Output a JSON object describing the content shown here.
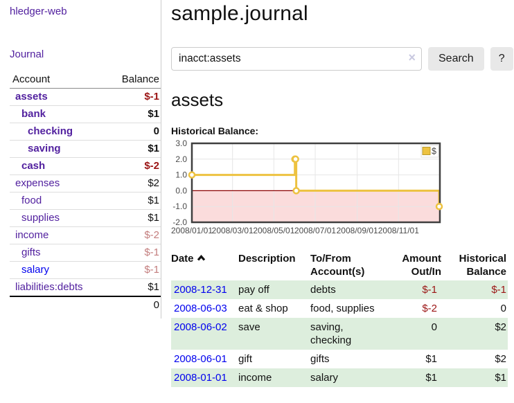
{
  "sidebar": {
    "app_title": "hledger-web",
    "journal_link": "Journal",
    "accounts": {
      "account_header": "Account",
      "balance_header": "Balance",
      "rows": [
        {
          "name": "assets",
          "balance": "$-1",
          "indent": 0,
          "bold": true,
          "balance_class": "neg-strong"
        },
        {
          "name": "bank",
          "balance": "$1",
          "indent": 1,
          "bold": true,
          "balance_class": ""
        },
        {
          "name": "checking",
          "balance": "0",
          "indent": 2,
          "bold": true,
          "balance_class": ""
        },
        {
          "name": "saving",
          "balance": "$1",
          "indent": 2,
          "bold": true,
          "balance_class": ""
        },
        {
          "name": "cash",
          "balance": "$-2",
          "indent": 1,
          "bold": true,
          "balance_class": "neg-strong"
        },
        {
          "name": "expenses",
          "balance": "$2",
          "indent": 0,
          "bold": false,
          "balance_class": ""
        },
        {
          "name": "food",
          "balance": "$1",
          "indent": 1,
          "bold": false,
          "balance_class": ""
        },
        {
          "name": "supplies",
          "balance": "$1",
          "indent": 1,
          "bold": false,
          "balance_class": ""
        },
        {
          "name": "income",
          "balance": "$-2",
          "indent": 0,
          "bold": false,
          "balance_class": "neg-light"
        },
        {
          "name": "gifts",
          "balance": "$-1",
          "indent": 1,
          "bold": false,
          "balance_class": "neg-light"
        },
        {
          "name": "salary",
          "balance": "$-1",
          "indent": 1,
          "bold": false,
          "balance_class": "neg-light",
          "link_color": "blue"
        },
        {
          "name": "liabilities:debts",
          "balance": "$1",
          "indent": 0,
          "bold": false,
          "balance_class": ""
        }
      ],
      "total": "0"
    }
  },
  "main": {
    "title": "sample.journal",
    "search": {
      "value": "inacct:assets",
      "clear_icon": "×",
      "button_label": "Search",
      "help_label": "?"
    },
    "account_heading": "assets",
    "chart_label": "Historical Balance:"
  },
  "chart_data": {
    "type": "line",
    "title": "Historical Balance",
    "step": true,
    "xlim": [
      "2008-01-01",
      "2009-01-01"
    ],
    "ylim": [
      -2,
      3
    ],
    "yticks": [
      {
        "label": "3.0",
        "value": 3
      },
      {
        "label": "2.0",
        "value": 2
      },
      {
        "label": "1.0",
        "value": 1
      },
      {
        "label": "0.0",
        "value": 0
      },
      {
        "label": "-1.0",
        "value": -1
      },
      {
        "label": "-2.0",
        "value": -2
      }
    ],
    "xticks": [
      {
        "label": "2008/01/01",
        "date": "2008-01-01"
      },
      {
        "label": "2008/03/01",
        "date": "2008-03-01"
      },
      {
        "label": "2008/05/01",
        "date": "2008-05-01"
      },
      {
        "label": "2008/07/01",
        "date": "2008-07-01"
      },
      {
        "label": "2008/09/01",
        "date": "2008-09-01"
      },
      {
        "label": "2008/11/01",
        "date": "2008-11-01"
      }
    ],
    "series": [
      {
        "name": "$",
        "color": "#edc240",
        "points": [
          [
            "2008-01-01",
            1
          ],
          [
            "2008-06-01",
            2
          ],
          [
            "2008-06-02",
            2
          ],
          [
            "2008-06-03",
            0
          ],
          [
            "2008-12-31",
            -1
          ]
        ]
      }
    ],
    "legend_position": "top-right",
    "negative_region_color": "#fbdcdc",
    "zero_line_color": "#8b0000",
    "grid_color": "#e6e6e6",
    "border_color": "#3f3f3f"
  },
  "register": {
    "headers": [
      "Date",
      "Description",
      "To/From Account(s)",
      "Amount Out/In",
      "Historical Balance"
    ],
    "sort": {
      "column": "Date",
      "direction": "ascending"
    },
    "rows": [
      {
        "date": "2008-12-31",
        "description": "pay off",
        "accounts": "debts",
        "amount": "$-1",
        "balance": "$-1"
      },
      {
        "date": "2008-06-03",
        "description": "eat & shop",
        "accounts": "food, supplies",
        "amount": "$-2",
        "balance": "0"
      },
      {
        "date": "2008-06-02",
        "description": "save",
        "accounts": "saving, checking",
        "amount": "0",
        "balance": "$2"
      },
      {
        "date": "2008-06-01",
        "description": "gift",
        "accounts": "gifts",
        "amount": "$1",
        "balance": "$2"
      },
      {
        "date": "2008-01-01",
        "description": "income",
        "accounts": "salary",
        "amount": "$1",
        "balance": "$1"
      }
    ]
  },
  "colors": {
    "link_purple": "#52219f",
    "link_blue": "#0000ee",
    "negative_strong": "#9b1414",
    "negative_light": "#c37d7d",
    "row_green": "#ddeedd"
  }
}
